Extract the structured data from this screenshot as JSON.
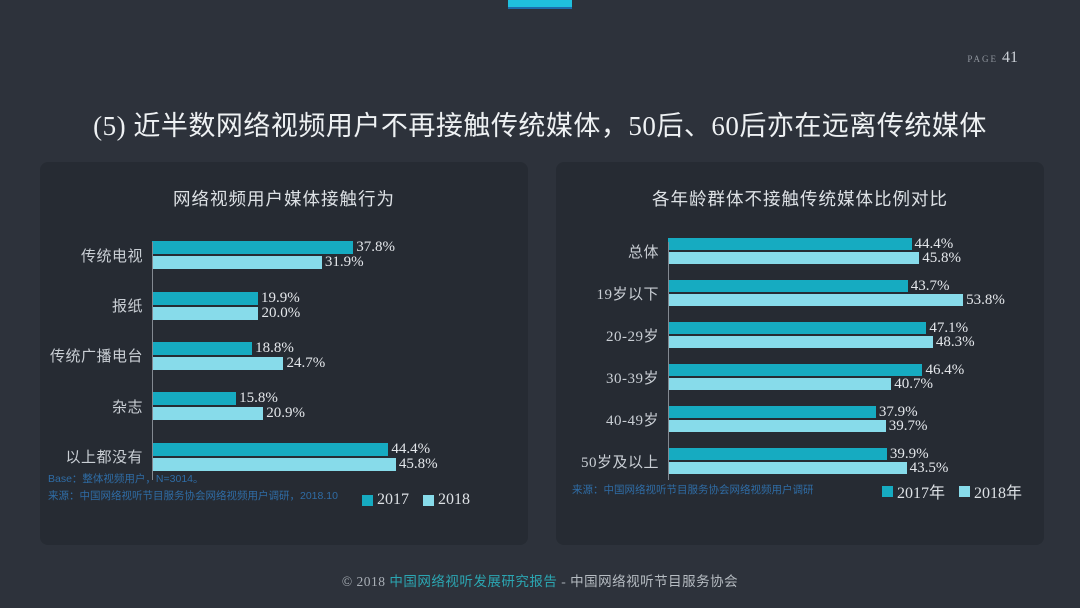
{
  "page": {
    "label": "PAGE",
    "number": "41"
  },
  "title": "(5) 近半数网络视频用户不再接触传统媒体，50后、60后亦在远离传统媒体",
  "colors": {
    "accent": "#1fc0de",
    "accent_underline": "#1c6dad",
    "series_2017": "#16abc1",
    "series_2018": "#87dbea",
    "note_blue": "#2f6ca5",
    "panel_bg": "#262b33",
    "page_bg": "#2d323b"
  },
  "chart_data": [
    {
      "type": "bar",
      "orientation": "horizontal",
      "title": "网络视频用户媒体接触行为",
      "categories": [
        "传统电视",
        "报纸",
        "传统广播电台",
        "杂志",
        "以上都没有"
      ],
      "series": [
        {
          "name": "2017",
          "values": [
            37.8,
            19.9,
            18.8,
            15.8,
            44.4
          ]
        },
        {
          "name": "2018",
          "values": [
            31.9,
            20.0,
            24.7,
            20.9,
            45.8
          ]
        }
      ],
      "xmax": 68,
      "unit": "%",
      "legend": [
        "2017",
        "2018"
      ],
      "legend_position": "bottom-right",
      "grid": false,
      "notes": [
        "Base：整体视频用户，N=3014。",
        "来源：中国网络视听节目服务协会网络视频用户调研，2018.10"
      ]
    },
    {
      "type": "bar",
      "orientation": "horizontal",
      "title": "各年龄群体不接触传统媒体比例对比",
      "categories": [
        "总体",
        "19岁以下",
        "20-29岁",
        "30-39岁",
        "40-49岁",
        "50岁及以上"
      ],
      "series": [
        {
          "name": "2017年",
          "values": [
            44.4,
            43.7,
            47.1,
            46.4,
            37.9,
            39.9
          ]
        },
        {
          "name": "2018年",
          "values": [
            45.8,
            53.8,
            48.3,
            40.7,
            39.7,
            43.5
          ]
        }
      ],
      "xmax": 66,
      "unit": "%",
      "legend": [
        "2017年",
        "2018年"
      ],
      "legend_position": "bottom-right",
      "grid": false,
      "notes": [
        "来源：中国网络视听节目服务协会网络视频用户调研"
      ]
    }
  ],
  "footer": {
    "copyright": "© 2018 ",
    "report": "中国网络视听发展研究报告",
    "separator": " - ",
    "org": "中国网络视听节目服务协会"
  }
}
